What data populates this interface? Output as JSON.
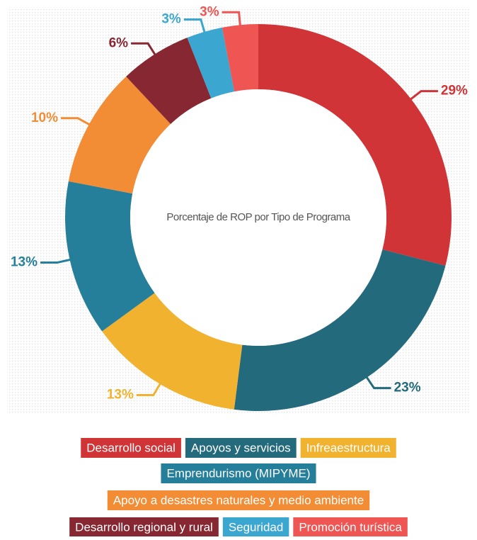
{
  "chart_data": {
    "type": "donut",
    "title": "Porcentaje de ROP por Tipo de Programa",
    "categories": [
      "Desarrollo social",
      "Apoyos y servicios",
      "Infreaestructura",
      "Emprendurismo (MIPYME)",
      "Apoyo a desastres naturales y medio ambiente",
      "Desarrollo regional y rural",
      "Seguridad",
      "Promoción turística"
    ],
    "values": [
      29,
      23,
      13,
      13,
      10,
      6,
      3,
      3
    ],
    "value_labels": [
      "29%",
      "23%",
      "13%",
      "13%",
      "10%",
      "6%",
      "3%",
      "3%"
    ],
    "colors": [
      "#d03437",
      "#236a7c",
      "#f0b22f",
      "#267f9a",
      "#f28d35",
      "#862732",
      "#3ba6cf",
      "#ee5553"
    ]
  }
}
